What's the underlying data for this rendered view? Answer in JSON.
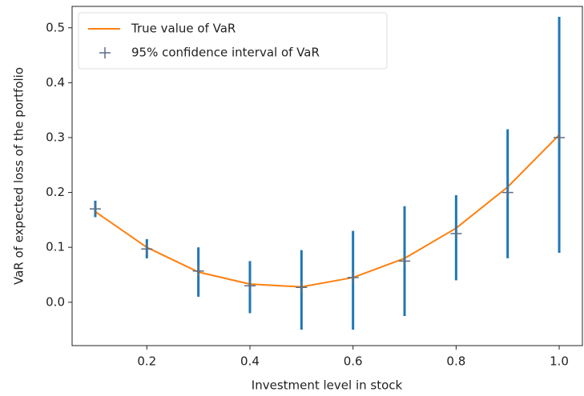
{
  "chart_data": {
    "type": "line",
    "x_label": "Investment level in stock",
    "y_label": "VaR of expected loss of the portfolio",
    "x": [
      0.1,
      0.2,
      0.3,
      0.4,
      0.5,
      0.6,
      0.7,
      0.8,
      0.9,
      1.0
    ],
    "series": [
      {
        "name": "True value of VaR",
        "color": "#ff7f0e",
        "values": [
          0.165,
          0.1,
          0.055,
          0.033,
          0.028,
          0.045,
          0.08,
          0.135,
          0.21,
          0.305
        ]
      },
      {
        "name": "95% confidence interval of VaR",
        "color": "#1f77b4",
        "marker": "+",
        "values": [
          0.17,
          0.097,
          0.057,
          0.03,
          0.027,
          0.045,
          0.075,
          0.125,
          0.2,
          0.3
        ],
        "lower": [
          0.155,
          0.08,
          0.01,
          -0.02,
          -0.05,
          -0.05,
          -0.025,
          0.04,
          0.08,
          0.09
        ],
        "upper": [
          0.185,
          0.115,
          0.1,
          0.075,
          0.095,
          0.13,
          0.175,
          0.195,
          0.315,
          0.52
        ]
      }
    ],
    "xlim": [
      0.055,
      1.045
    ],
    "ylim": [
      -0.079,
      0.539
    ],
    "xticks": [
      0.2,
      0.4,
      0.6,
      0.8,
      {
        "value": 1,
        "label": "1.0"
      }
    ],
    "yticks": [
      {
        "value": 0,
        "label": "0.0"
      },
      0.1,
      0.2,
      0.3,
      0.4,
      0.5
    ],
    "grid": false,
    "legend": "upper left"
  }
}
